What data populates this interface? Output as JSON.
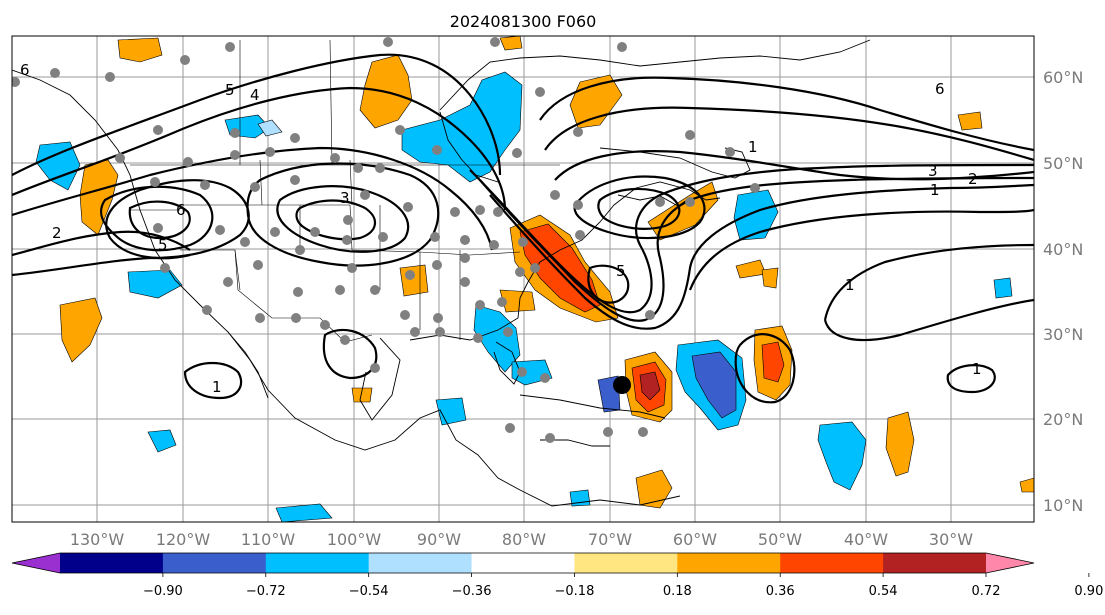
{
  "title": "2024081300 F060",
  "lat_labels": [
    "60°N",
    "50°N",
    "40°N",
    "30°N",
    "20°N",
    "10°N"
  ],
  "lon_labels": [
    "130°W",
    "120°W",
    "110°W",
    "100°W",
    "90°W",
    "80°W",
    "70°W",
    "60°W",
    "50°W",
    "40°W",
    "30°W"
  ],
  "colorbar": {
    "ticks": [
      "−0.90",
      "−0.72",
      "−0.54",
      "−0.36",
      "−0.18",
      "0.18",
      "0.36",
      "0.54",
      "0.72",
      "0.90"
    ],
    "colors": [
      "#9b30d0",
      "#00008b",
      "#3a5fcd",
      "#00bfff",
      "#b0e0ff",
      "#ffffff",
      "#ffe680",
      "#ffa500",
      "#ff4500",
      "#b22222",
      "#ff88aa"
    ]
  },
  "contour_labels": {
    "c1": "6",
    "c2": "5",
    "c3": "4",
    "c4": "3",
    "c5": "2",
    "c6": "1",
    "c7": "6",
    "c8": "5",
    "c9": "3",
    "c10": "2",
    "c11": "1",
    "c12": "1",
    "c13": "1",
    "c14": "1",
    "c15": "5",
    "c16": "6"
  },
  "colors": {
    "grid": "#9a9a9a",
    "station": "#808080",
    "center": "#000000"
  }
}
